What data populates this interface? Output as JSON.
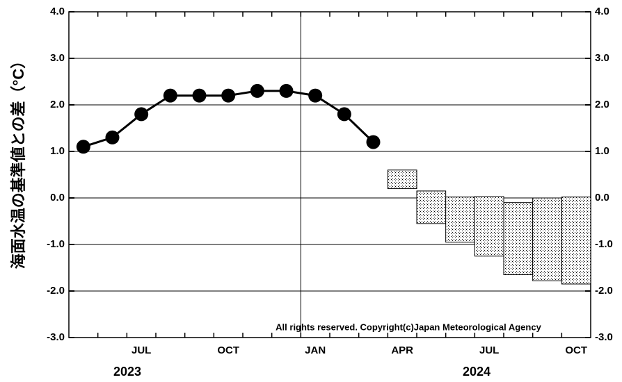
{
  "chart_data": {
    "type": "line",
    "y_label": "海面水温の基準値との差（°C）",
    "note": "All rights reserved. Copyright(c)Japan   Meteorological Agency",
    "categories": [
      null,
      null,
      "JUL",
      null,
      null,
      "OCT",
      null,
      null,
      "JAN",
      null,
      null,
      "APR",
      null,
      null,
      "JUL",
      null,
      null,
      "OCT"
    ],
    "years": [
      "2023",
      "2024"
    ],
    "ylim": [
      -3,
      4
    ],
    "yticks": [
      {
        "value": -3,
        "label": "-3.0"
      },
      {
        "value": -2,
        "label": "-2.0"
      },
      {
        "value": -1,
        "label": "-1.0"
      },
      {
        "value": 0,
        "label": "0.0"
      },
      {
        "value": 1,
        "label": "1.0"
      },
      {
        "value": 2,
        "label": "2.0"
      },
      {
        "value": 3,
        "label": "3.0"
      },
      {
        "value": 4,
        "label": "4.0"
      }
    ],
    "grid": true,
    "series": [
      {
        "type": "line",
        "color": "#000000",
        "values": [
          1.1,
          1.3,
          1.8,
          2.2,
          2.2,
          2.2,
          2.3,
          2.3,
          2.2,
          1.8,
          1.2,
          null,
          null,
          null,
          null,
          null,
          null,
          null
        ]
      },
      {
        "type": "range",
        "color": "#000000",
        "low": [
          null,
          null,
          null,
          null,
          null,
          null,
          null,
          null,
          null,
          null,
          null,
          0.2,
          -0.55,
          -0.95,
          -1.25,
          -1.65,
          -1.78,
          -1.85
        ],
        "high": [
          null,
          null,
          null,
          null,
          null,
          null,
          null,
          null,
          null,
          null,
          null,
          0.6,
          0.15,
          0.02,
          0.03,
          -0.1,
          0.0,
          0.02
        ]
      }
    ]
  }
}
